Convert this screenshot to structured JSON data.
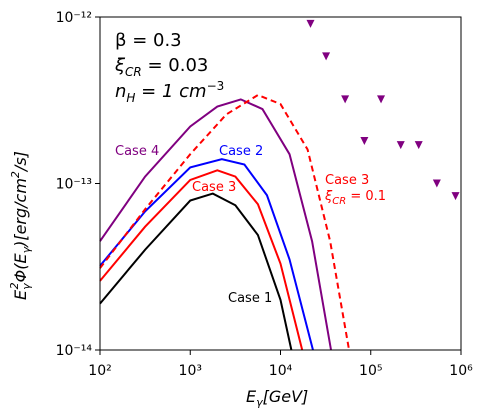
{
  "chart_data": {
    "type": "line",
    "xscale": "log",
    "yscale": "log",
    "xlim": [
      100,
      1000000
    ],
    "ylim": [
      1e-14,
      1e-12
    ],
    "xticks": [
      {
        "value": 100,
        "label": "10²"
      },
      {
        "value": 1000,
        "label": "10³"
      },
      {
        "value": 10000,
        "label": "10⁴"
      },
      {
        "value": 100000,
        "label": "10⁵"
      },
      {
        "value": 1000000,
        "label": "10⁶"
      }
    ],
    "yticks": [
      {
        "value": 1e-14,
        "label": "10⁻¹⁴"
      },
      {
        "value": 1e-13,
        "label": "10⁻¹³"
      },
      {
        "value": 1e-12,
        "label": "10⁻¹²"
      }
    ],
    "xlabel": [
      "E",
      "γ",
      "[GeV]"
    ],
    "ylabel": [
      "E",
      "γ",
      "2",
      "Φ(E",
      "γ",
      ")[erg/cm",
      "2",
      "/s]"
    ],
    "annotations": [
      [
        "β = 0.3"
      ],
      [
        "ξ",
        "CR",
        " = 0.03"
      ],
      [
        "n",
        "H",
        " = 1 cm",
        "−3"
      ],
      [
        "ξ",
        "CR",
        " = 0.1"
      ]
    ],
    "series": [
      {
        "name": "Case 1",
        "color": "#000000",
        "style": "solid",
        "x": [
          100,
          316,
          1000,
          1778,
          3162,
          5623,
          10000,
          13200
        ],
        "values": [
          1.9e-14,
          4e-14,
          7.9e-14,
          8.7e-14,
          7.4e-14,
          4.9e-14,
          2e-14,
          1e-14
        ]
      },
      {
        "name": "Case 2",
        "color": "#0000ff",
        "style": "solid",
        "x": [
          100,
          316,
          1000,
          2239,
          3981,
          7079,
          12589,
          22900
        ],
        "values": [
          3.2e-14,
          6.8e-14,
          1.25e-13,
          1.4e-13,
          1.3e-13,
          8.5e-14,
          3.5e-14,
          1e-14
        ]
      },
      {
        "name": "Case 3",
        "color": "#ff0000",
        "style": "solid",
        "x": [
          100,
          316,
          1000,
          1995,
          3162,
          5623,
          10000,
          17400
        ],
        "values": [
          2.6e-14,
          5.5e-14,
          1.05e-13,
          1.2e-13,
          1.1e-13,
          7.5e-14,
          3.3e-14,
          1e-14
        ]
      },
      {
        "name": "Case 4",
        "color": "#800080",
        "style": "solid",
        "x": [
          100,
          316,
          1000,
          1995,
          3631,
          6310,
          12589,
          22387,
          36300
        ],
        "values": [
          4.5e-14,
          1.1e-13,
          2.2e-13,
          2.9e-13,
          3.2e-13,
          2.8e-13,
          1.5e-13,
          4.5e-14,
          1e-14
        ]
      },
      {
        "name": "Case 3",
        "color": "#ff0000",
        "style": "dashed",
        "x": [
          100,
          316,
          1000,
          2512,
          5623,
          10000,
          19953,
          35481,
          57500
        ],
        "values": [
          3.1e-14,
          7e-14,
          1.5e-13,
          2.6e-13,
          3.4e-13,
          3e-13,
          1.6e-13,
          4.5e-14,
          1e-14
        ]
      },
      {
        "type": "scatter",
        "marker": "v",
        "color": "#800080",
        "x": [
          21500,
          32000,
          52000,
          85000,
          130000,
          215000,
          340000,
          540000,
          870000
        ],
        "values": [
          9.1e-13,
          5.8e-13,
          3.2e-13,
          1.8e-13,
          3.2e-13,
          1.7e-13,
          1.7e-13,
          1e-13,
          8.4e-14
        ]
      }
    ]
  }
}
